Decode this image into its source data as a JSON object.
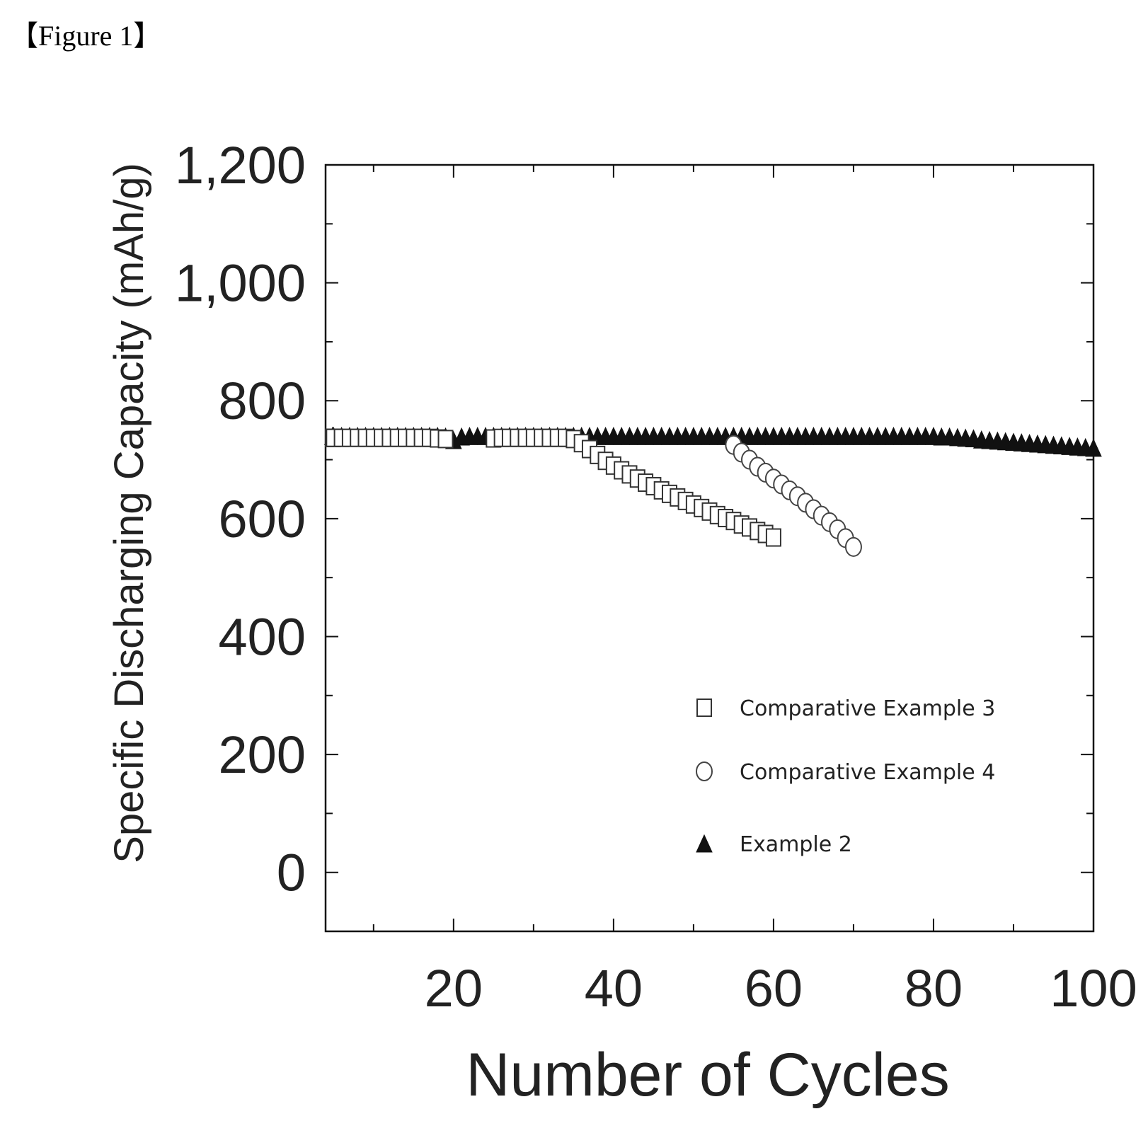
{
  "figure_label": "【Figure 1】",
  "chart_data": {
    "type": "scatter",
    "xlabel": "Number of Cycles",
    "ylabel": "Specific Discharging Capacity (mAh/g)",
    "xlim": [
      4,
      100
    ],
    "ylim": [
      -100,
      1200
    ],
    "x_ticks": [
      20,
      40,
      60,
      80,
      100
    ],
    "x_tick_labels": [
      "20",
      "40",
      "60",
      "80",
      "100"
    ],
    "y_ticks": [
      0,
      200,
      400,
      600,
      800,
      1000,
      1200
    ],
    "y_tick_labels": [
      "0",
      "200",
      "400",
      "600",
      "800",
      "1,000",
      "1,200"
    ],
    "grid": false,
    "legend_position": "bottom-right",
    "series": [
      {
        "name": "Comparative Example 3",
        "marker": "square-open",
        "x": [
          1,
          2,
          3,
          4,
          5,
          6,
          7,
          8,
          9,
          10,
          11,
          12,
          13,
          14,
          15,
          16,
          17,
          18,
          19,
          25,
          26,
          27,
          28,
          29,
          30,
          31,
          32,
          33,
          34,
          35,
          36,
          37,
          38,
          39,
          40,
          41,
          42,
          43,
          44,
          45,
          46,
          47,
          48,
          49,
          50,
          51,
          52,
          53,
          54,
          55,
          56,
          57,
          58,
          59,
          60
        ],
        "values": [
          737,
          737,
          737,
          737,
          737,
          737,
          737,
          737,
          737,
          737,
          737,
          737,
          737,
          737,
          737,
          737,
          737,
          736,
          735,
          736,
          737,
          737,
          737,
          737,
          737,
          737,
          737,
          737,
          737,
          735,
          728,
          718,
          708,
          698,
          690,
          682,
          675,
          668,
          661,
          655,
          648,
          642,
          636,
          630,
          624,
          618,
          612,
          606,
          601,
          596,
          590,
          585,
          579,
          574,
          568
        ]
      },
      {
        "name": "Comparative Example 4",
        "marker": "circle-open",
        "x": [
          55,
          56,
          57,
          58,
          59,
          60,
          61,
          62,
          63,
          64,
          65,
          66,
          67,
          68,
          69,
          70
        ],
        "values": [
          725,
          712,
          700,
          688,
          678,
          668,
          658,
          648,
          638,
          627,
          616,
          605,
          594,
          582,
          567,
          552
        ]
      },
      {
        "name": "Example 2",
        "marker": "triangle-filled",
        "x": [
          1,
          2,
          3,
          4,
          5,
          6,
          7,
          8,
          9,
          10,
          11,
          12,
          13,
          14,
          15,
          16,
          17,
          18,
          19,
          20,
          21,
          22,
          23,
          24,
          25,
          26,
          27,
          28,
          29,
          30,
          31,
          32,
          33,
          34,
          35,
          36,
          37,
          38,
          39,
          40,
          41,
          42,
          43,
          44,
          45,
          46,
          47,
          48,
          49,
          50,
          51,
          52,
          53,
          54,
          55,
          56,
          57,
          58,
          59,
          60,
          61,
          62,
          63,
          64,
          65,
          66,
          67,
          68,
          69,
          70,
          71,
          72,
          73,
          74,
          75,
          76,
          77,
          78,
          79,
          80,
          81,
          82,
          83,
          84,
          85,
          86,
          87,
          88,
          89,
          90,
          91,
          92,
          93,
          94,
          95,
          96,
          97,
          98,
          99,
          100
        ],
        "values": [
          740,
          740,
          740,
          740,
          740,
          740,
          740,
          740,
          740,
          740,
          740,
          740,
          740,
          740,
          740,
          740,
          740,
          740,
          739,
          733,
          739,
          740,
          740,
          740,
          740,
          740,
          740,
          740,
          740,
          740,
          740,
          740,
          740,
          740,
          740,
          740,
          740,
          740,
          740,
          740,
          740,
          740,
          740,
          740,
          740,
          740,
          740,
          740,
          740,
          740,
          740,
          740,
          740,
          740,
          740,
          740,
          740,
          740,
          740,
          740,
          740,
          740,
          740,
          740,
          740,
          740,
          740,
          740,
          740,
          740,
          740,
          740,
          740,
          740,
          740,
          740,
          740,
          740,
          740,
          740,
          739,
          739,
          738,
          737,
          736,
          734,
          733,
          732,
          731,
          730,
          729,
          728,
          727,
          726,
          725,
          724,
          723,
          722,
          721,
          720
        ]
      }
    ]
  }
}
